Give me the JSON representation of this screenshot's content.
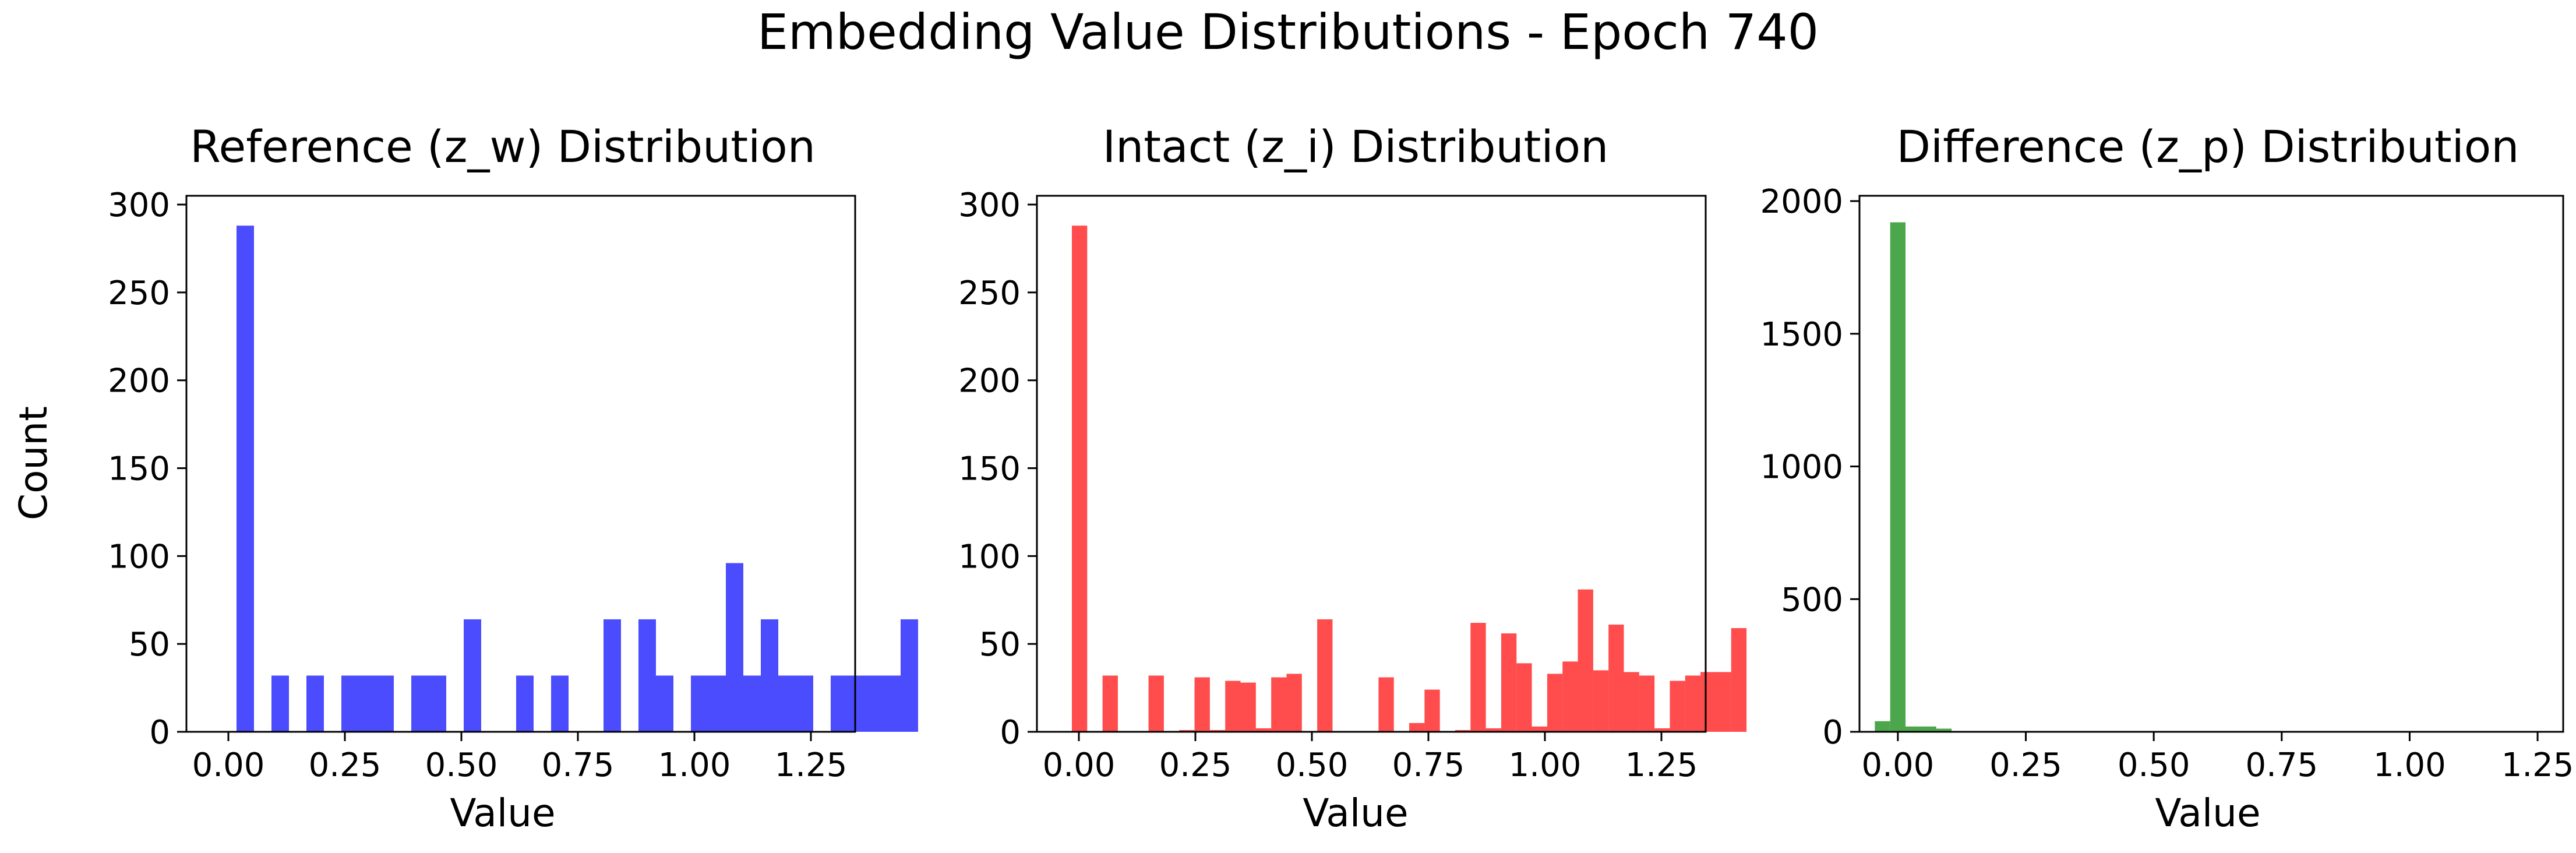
{
  "figure": {
    "title": "Embedding Value Distributions - Epoch 740"
  },
  "chart_data": [
    {
      "type": "bar",
      "title": "Reference (z_w) Distribution",
      "xlabel": "Value",
      "ylabel": "Count",
      "color": "#0000ff",
      "xlim": [
        -0.09,
        1.345
      ],
      "ylim": [
        0,
        305
      ],
      "xticks": [
        "0.00",
        "0.25",
        "0.50",
        "0.75",
        "1.00",
        "1.25"
      ],
      "xtick_values": [
        0,
        0.25,
        0.5,
        0.75,
        1.0,
        1.25
      ],
      "yticks": [
        "0",
        "50",
        "100",
        "150",
        "200",
        "250",
        "300"
      ],
      "ytick_values": [
        0,
        50,
        100,
        150,
        200,
        250,
        300
      ],
      "bin_start": -0.02,
      "bin_width": 0.0375,
      "values": [
        0,
        288,
        0,
        32,
        0,
        32,
        0,
        32,
        32,
        32,
        0,
        32,
        32,
        0,
        64,
        0,
        0,
        32,
        0,
        32,
        0,
        0,
        64,
        0,
        64,
        32,
        0,
        32,
        32,
        96,
        32,
        64,
        32,
        32,
        0,
        32,
        32,
        32,
        32,
        64
      ]
    },
    {
      "type": "bar",
      "title": "Intact (z_i) Distribution",
      "xlabel": "Value",
      "ylabel": "",
      "color": "#ff0000",
      "xlim": [
        -0.09,
        1.345
      ],
      "ylim": [
        0,
        305
      ],
      "xticks": [
        "0.00",
        "0.25",
        "0.50",
        "0.75",
        "1.00",
        "1.25"
      ],
      "xtick_values": [
        0,
        0.25,
        0.5,
        0.75,
        1.0,
        1.25
      ],
      "yticks": [
        "0",
        "50",
        "100",
        "150",
        "200",
        "250",
        "300"
      ],
      "ytick_values": [
        0,
        50,
        100,
        150,
        200,
        250,
        300
      ],
      "bin_start": -0.015,
      "bin_width": 0.0329,
      "values": [
        288,
        0,
        32,
        0,
        0,
        32,
        0,
        1,
        31,
        1,
        29,
        28,
        2,
        31,
        33,
        0,
        64,
        0,
        0,
        0,
        31,
        0,
        5,
        24,
        0,
        1,
        62,
        2,
        56,
        39,
        3,
        33,
        40,
        81,
        35,
        61,
        34,
        32,
        2,
        29,
        32,
        34,
        34,
        59
      ]
    },
    {
      "type": "bar",
      "title": "Difference (z_p) Distribution",
      "xlabel": "Value",
      "ylabel": "",
      "color": "#008000",
      "xlim": [
        -0.075,
        1.3
      ],
      "ylim": [
        0,
        2020
      ],
      "xticks": [
        "0.00",
        "0.25",
        "0.50",
        "0.75",
        "1.00",
        "1.25"
      ],
      "xtick_values": [
        0,
        0.25,
        0.5,
        0.75,
        1.0,
        1.25
      ],
      "yticks": [
        "0",
        "500",
        "1000",
        "1500",
        "2000"
      ],
      "ytick_values": [
        0,
        500,
        1000,
        1500,
        2000
      ],
      "bin_start": -0.045,
      "bin_width": 0.03,
      "values": [
        40,
        1920,
        20,
        20,
        12,
        0,
        0,
        0,
        0,
        0,
        0,
        0,
        0,
        0,
        0,
        0,
        0,
        0,
        0,
        0,
        0,
        0,
        0,
        0,
        0,
        0,
        0,
        0,
        0,
        0,
        0,
        0,
        0,
        0,
        0,
        0,
        0,
        0,
        0,
        0,
        0,
        0,
        0,
        0
      ]
    }
  ]
}
